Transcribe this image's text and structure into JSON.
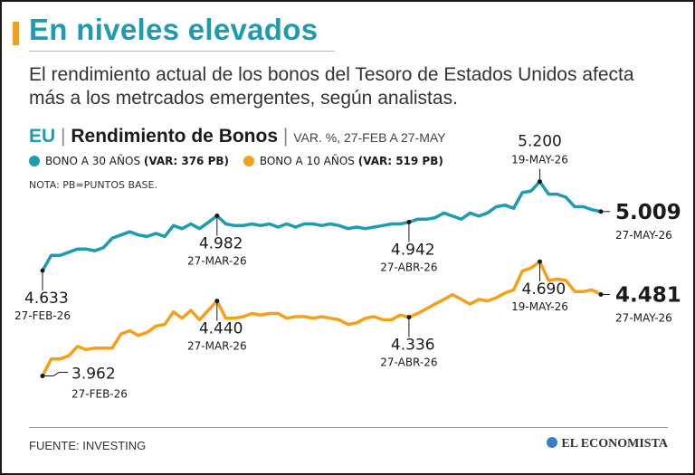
{
  "title": "En niveles elevados",
  "subtitle": "El rendimiento actual de los bonos del Tesoro de Estados Unidos afecta más a los metrcados emergentes, según analistas.",
  "chart_header": {
    "country": "EU",
    "separator": "|",
    "name": "Rendimiento de Bonos",
    "description": "VAR. %, 27-FEB A 27-MAY"
  },
  "legend": [
    {
      "label": "BONO A 30 AÑOS",
      "var": "(VAR: 376 PB)",
      "color": "#1f9bb0"
    },
    {
      "label": "BONO A 10 AÑOS",
      "var": "(VAR: 519 PB)",
      "color": "#f5a01a"
    }
  ],
  "note": "NOTA: PB=PUNTOS BASE.",
  "footer": {
    "source": "FUENTE: INVESTING",
    "brand": "EL ECONOMISTA",
    "brand_icon": "el-economista-logo"
  },
  "chart_data": {
    "type": "line",
    "title": "Rendimiento de Bonos",
    "xlabel": "",
    "ylabel": "",
    "grid": false,
    "legend_placement": "top-left",
    "ylim": [
      3.85,
      5.25
    ],
    "series": [
      {
        "name": "BONO A 30 AÑOS",
        "color": "#1f9bb0",
        "values": [
          4.633,
          4.73,
          4.73,
          4.75,
          4.77,
          4.77,
          4.76,
          4.78,
          4.84,
          4.86,
          4.88,
          4.86,
          4.85,
          4.87,
          4.85,
          4.92,
          4.9,
          4.93,
          4.9,
          4.94,
          4.982,
          4.93,
          4.92,
          4.92,
          4.93,
          4.92,
          4.93,
          4.91,
          4.93,
          4.91,
          4.93,
          4.93,
          4.92,
          4.93,
          4.92,
          4.9,
          4.91,
          4.9,
          4.91,
          4.92,
          4.93,
          4.93,
          4.942,
          4.96,
          4.96,
          4.97,
          5.0,
          4.98,
          4.96,
          5.0,
          4.98,
          5.0,
          5.04,
          5.05,
          5.03,
          5.13,
          5.14,
          5.2,
          5.12,
          5.12,
          5.1,
          5.04,
          5.04,
          5.02,
          5.009
        ],
        "labels": [
          {
            "index": 0,
            "value": "4.633",
            "date": "27-FEB-26",
            "pos": "below"
          },
          {
            "index": 20,
            "value": "4.982",
            "date": "27-MAR-26",
            "pos": "below"
          },
          {
            "index": 42,
            "value": "4.942",
            "date": "27-ABR-26",
            "pos": "below"
          },
          {
            "index": 57,
            "value": "5.200",
            "date": "19-MAY-26",
            "pos": "above"
          },
          {
            "index": 64,
            "value": "5.009",
            "date": "27-MAY-26",
            "pos": "end"
          }
        ]
      },
      {
        "name": "BONO A 10 AÑOS",
        "color": "#f5a01a",
        "values": [
          3.962,
          4.07,
          4.07,
          4.09,
          4.15,
          4.13,
          4.14,
          4.14,
          4.14,
          4.23,
          4.25,
          4.22,
          4.24,
          4.28,
          4.29,
          4.37,
          4.33,
          4.38,
          4.32,
          4.38,
          4.44,
          4.33,
          4.33,
          4.34,
          4.36,
          4.35,
          4.36,
          4.36,
          4.33,
          4.34,
          4.34,
          4.33,
          4.34,
          4.33,
          4.32,
          4.29,
          4.3,
          4.33,
          4.34,
          4.32,
          4.32,
          4.35,
          4.336,
          4.36,
          4.39,
          4.42,
          4.45,
          4.48,
          4.45,
          4.42,
          4.45,
          4.44,
          4.46,
          4.49,
          4.51,
          4.63,
          4.65,
          4.69,
          4.57,
          4.58,
          4.57,
          4.5,
          4.5,
          4.51,
          4.481
        ],
        "labels": [
          {
            "index": 0,
            "value": "3.962",
            "date": "27-FEB-26",
            "pos": "right"
          },
          {
            "index": 20,
            "value": "4.440",
            "date": "27-MAR-26",
            "pos": "below"
          },
          {
            "index": 42,
            "value": "4.336",
            "date": "27-ABR-26",
            "pos": "below"
          },
          {
            "index": 57,
            "value": "4.690",
            "date": "19-MAY-26",
            "pos": "below"
          },
          {
            "index": 64,
            "value": "4.481",
            "date": "27-MAY-26",
            "pos": "end"
          }
        ]
      }
    ]
  }
}
